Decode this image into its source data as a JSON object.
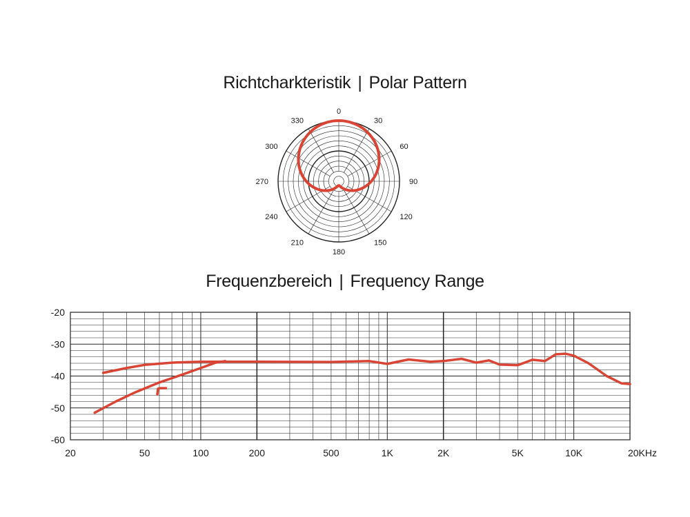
{
  "titles": {
    "polar": {
      "de": "Richtcharkteristik",
      "sep": "|",
      "en": "Polar Pattern"
    },
    "frequency": {
      "de": "Frequenzbereich",
      "sep": "|",
      "en": "Frequency Range"
    }
  },
  "chart_data": [
    {
      "type": "polar",
      "title": "Richtcharkteristik | Polar Pattern",
      "angle_labels": [
        "0",
        "30",
        "60",
        "90",
        "120",
        "150",
        "180",
        "210",
        "240",
        "270",
        "300",
        "330"
      ],
      "pattern": "cardioid",
      "rings": 12,
      "color": "#d94435",
      "series": [
        {
          "angles_deg": [
            0,
            30,
            60,
            90,
            120,
            150,
            180,
            210,
            240,
            270,
            300,
            330
          ],
          "relative_response": [
            1.0,
            0.93,
            0.77,
            0.55,
            0.32,
            0.12,
            0.0,
            0.12,
            0.32,
            0.55,
            0.77,
            0.93
          ]
        }
      ]
    },
    {
      "type": "line",
      "title": "Frequenzbereich | Frequency Range",
      "x_scale": "log",
      "xlim": [
        20,
        20000
      ],
      "ylim": [
        -60,
        -20
      ],
      "x_ticks": [
        20,
        50,
        100,
        200,
        500,
        1000,
        2000,
        5000,
        10000,
        20000
      ],
      "x_tick_labels": [
        "20",
        "50",
        "100",
        "200",
        "500",
        "1K",
        "2K",
        "5K",
        "10K",
        "20KHz"
      ],
      "y_ticks": [
        -20,
        -30,
        -40,
        -50,
        -60
      ],
      "y_tick_labels": [
        "-20",
        "-30",
        "-40",
        "-50",
        "-60"
      ],
      "grid": true,
      "color": "#d94435",
      "series": [
        {
          "x": [
            30,
            40,
            50,
            70,
            100,
            150,
            200,
            500,
            800,
            1000,
            1300,
            1700,
            2000,
            2500,
            3000,
            3500,
            4000,
            5000,
            6000,
            7000,
            8000,
            9000,
            10000,
            12000,
            15000,
            18000,
            20000
          ],
          "y": [
            -39,
            -37.5,
            -36.5,
            -35.8,
            -35.5,
            -35.5,
            -35.5,
            -35.6,
            -35.3,
            -36.2,
            -34.8,
            -35.5,
            -35.3,
            -34.6,
            -35.8,
            -35.1,
            -36.4,
            -36.6,
            -34.9,
            -35.3,
            -33.2,
            -33.0,
            -33.6,
            -36.0,
            -40.0,
            -42.3,
            -42.5
          ]
        },
        {
          "x": [
            27,
            35,
            45,
            60,
            80,
            100,
            120,
            135
          ],
          "y": [
            -51.5,
            -48,
            -45,
            -42,
            -39.5,
            -37.5,
            -35.8,
            -35.3
          ]
        },
        {
          "x": [
            58.5,
            59,
            60,
            65
          ],
          "y": [
            -45.8,
            -44,
            -43.8,
            -43.8
          ]
        }
      ]
    }
  ]
}
